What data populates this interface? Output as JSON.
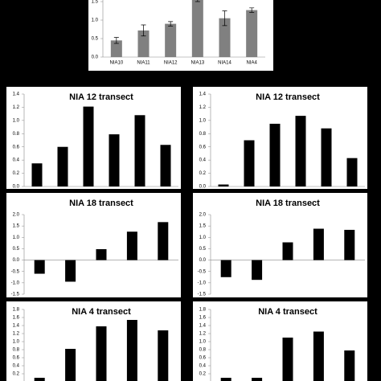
{
  "chart_data": [
    {
      "type": "bar",
      "categories": [
        "NIA10",
        "NIA11",
        "NIA12",
        "NIA13",
        "NIA14",
        "NIA4"
      ],
      "values": [
        0.45,
        0.72,
        0.9,
        1.6,
        1.05,
        1.27
      ],
      "errors": [
        0.08,
        0.15,
        0.06,
        0.1,
        0.2,
        0.06
      ],
      "color": "#808080",
      "ylim": [
        0,
        1.6
      ],
      "yticks": [
        {
          "value": 0,
          "label": "0.0"
        },
        0.5,
        {
          "value": 1,
          "label": "1.0"
        },
        1.5
      ]
    },
    {
      "type": "bar",
      "title": "NIA 12 transect",
      "categories": [
        null,
        null,
        null,
        null,
        null,
        null
      ],
      "values": [
        0.35,
        0.6,
        1.21,
        0.79,
        1.08,
        0.63
      ],
      "color": "#000000",
      "ylim": [
        0,
        1.4
      ],
      "yticks": [
        {
          "value": 0,
          "label": "0.0"
        },
        0.2,
        0.4,
        0.6,
        0.8,
        {
          "value": 1,
          "label": "1.0"
        },
        1.2,
        1.4
      ]
    },
    {
      "type": "bar",
      "title": "NIA 12 transect",
      "categories": [
        null,
        null,
        null,
        null,
        null,
        null
      ],
      "values": [
        0.03,
        0.7,
        0.95,
        1.07,
        0.88,
        0.43
      ],
      "color": "#000000",
      "ylim": [
        0,
        1.4
      ],
      "yticks": [
        {
          "value": 0,
          "label": "0.0"
        },
        0.2,
        0.4,
        0.6,
        0.8,
        {
          "value": 1,
          "label": "1.0"
        },
        1.2,
        1.4
      ]
    },
    {
      "type": "bar",
      "title": "NIA 18 transect",
      "categories": [
        null,
        null,
        null,
        null,
        null
      ],
      "values": [
        -0.6,
        -0.95,
        0.48,
        1.25,
        1.67
      ],
      "color": "#000000",
      "ylim": [
        -1.5,
        2
      ],
      "yticks": [
        -1.5,
        {
          "value": -1,
          "label": "-1.0"
        },
        -0.5,
        {
          "value": 0,
          "label": "0.0"
        },
        0.5,
        {
          "value": 1,
          "label": "1.0"
        },
        1.5,
        {
          "value": 2,
          "label": "2.0"
        }
      ]
    },
    {
      "type": "bar",
      "title": "NIA 18 transect",
      "categories": [
        null,
        null,
        null,
        null,
        null
      ],
      "values": [
        -0.75,
        -0.87,
        0.78,
        1.38,
        1.33
      ],
      "color": "#000000",
      "ylim": [
        -1.5,
        2
      ],
      "yticks": [
        -1.5,
        {
          "value": -1,
          "label": "-1.0"
        },
        -0.5,
        {
          "value": 0,
          "label": "0.0"
        },
        0.5,
        {
          "value": 1,
          "label": "1.0"
        },
        1.5,
        {
          "value": 2,
          "label": "2.0"
        }
      ]
    },
    {
      "type": "bar",
      "title": "NIA 4 transect",
      "categories": [
        null,
        null,
        null,
        null,
        null
      ],
      "values": [
        0.1,
        0.82,
        1.38,
        1.54,
        1.28
      ],
      "color": "#000000",
      "ylim": [
        0,
        1.8
      ],
      "yticks": [
        0.2,
        0.4,
        0.6,
        0.8,
        {
          "value": 1,
          "label": "1.0"
        },
        1.2,
        1.4,
        1.6,
        1.8
      ]
    },
    {
      "type": "bar",
      "title": "NIA 4 transect",
      "categories": [
        null,
        null,
        null,
        null,
        null
      ],
      "values": [
        0.1,
        0.1,
        1.1,
        1.25,
        0.78
      ],
      "color": "#000000",
      "ylim": [
        0,
        1.8
      ],
      "yticks": [
        0.2,
        0.4,
        0.6,
        0.8,
        {
          "value": 1,
          "label": "1.0"
        },
        1.2,
        1.4,
        1.6,
        1.8
      ]
    }
  ]
}
